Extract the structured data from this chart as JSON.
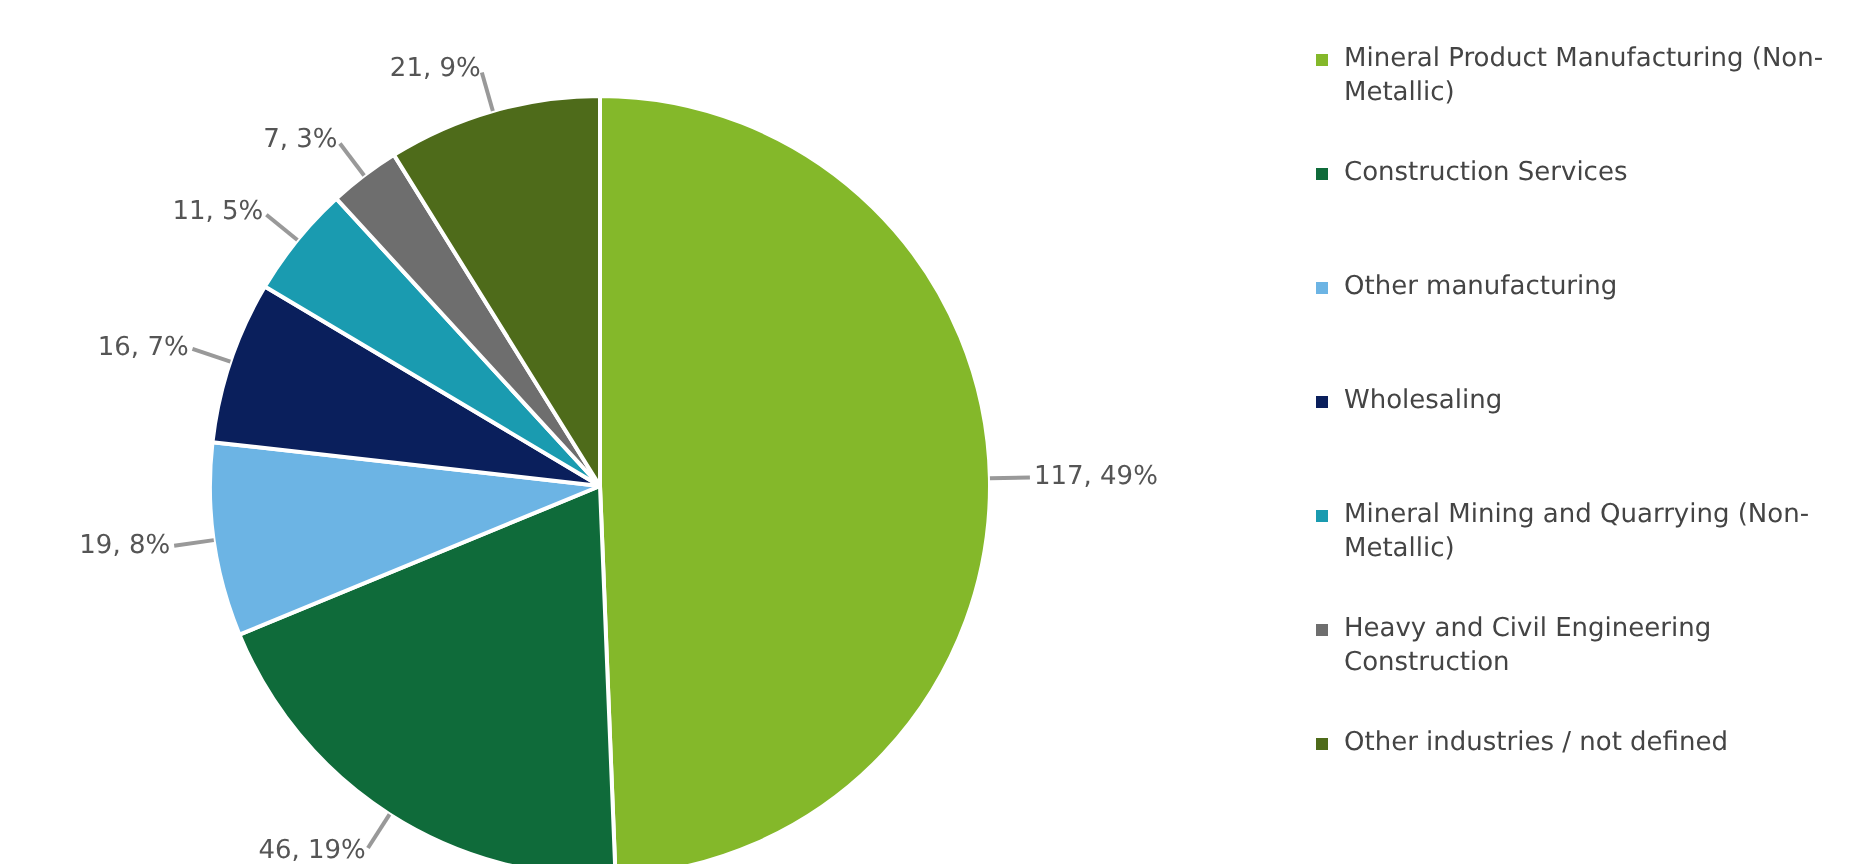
{
  "chart_data": {
    "type": "pie",
    "categories": [
      "Mineral Product Manufacturing (Non-Metallic)",
      "Construction Services",
      "Other manufacturing",
      "Wholesaling",
      "Mineral Mining and Quarrying (Non-Metallic)",
      "Heavy and Civil Engineering Construction",
      "Other industries / not defined"
    ],
    "values": [
      117,
      46,
      19,
      16,
      11,
      7,
      21
    ],
    "value_labels": [
      "117, 49%",
      "46, 19%",
      "19, 8%",
      "16, 7%",
      "11, 5%",
      "7, 3%",
      "21, 9%"
    ],
    "colors": [
      "#84b82a",
      "#0f6b3a",
      "#6cb4e4",
      "#0a1f5c",
      "#1a9bb0",
      "#6e6e6e",
      "#4e6b1a"
    ],
    "legend": "right"
  }
}
